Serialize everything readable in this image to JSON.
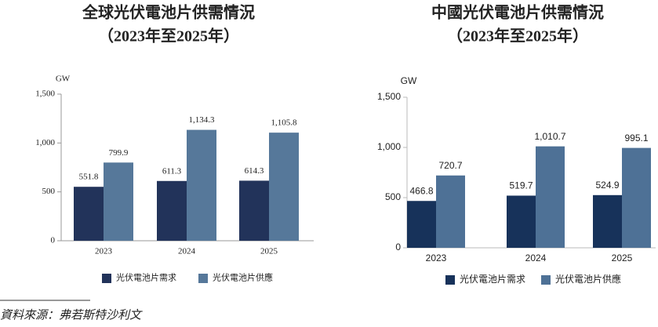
{
  "chart_data": [
    {
      "type": "bar",
      "title": "全球光伏電池片供需情況",
      "subtitle": "（2023年至2025年）",
      "y_label": "GW",
      "categories": [
        "2023",
        "2024",
        "2025"
      ],
      "series": [
        {
          "name": "光伏電池片需求",
          "color": "#22335a",
          "values": [
            551.8,
            611.3,
            614.3
          ],
          "value_labels": [
            "551.8",
            "611.3",
            "614.3"
          ]
        },
        {
          "name": "光伏電池片供應",
          "color": "#56789a",
          "values": [
            799.9,
            1134.3,
            1105.8
          ],
          "value_labels": [
            "799.9",
            "1,134.3",
            "1,105.8"
          ]
        }
      ],
      "ylim": [
        0,
        1500
      ],
      "yticks": [
        0,
        500,
        {
          "value": 1000,
          "label": "1,000"
        },
        {
          "value": 1500,
          "label": "1,500"
        }
      ],
      "grid": false,
      "legend": "bottom"
    },
    {
      "type": "bar",
      "title": "中國光伏電池片供需情況",
      "subtitle": "（2023年至2025年）",
      "y_label": "GW",
      "categories": [
        "2023",
        "2024",
        "2025"
      ],
      "series": [
        {
          "name": "光伏電池片需求",
          "color": "#17325a",
          "values": [
            466.8,
            519.7,
            524.9
          ],
          "value_labels": [
            "466.8",
            "519.7",
            "524.9"
          ]
        },
        {
          "name": "光伏電池片供應",
          "color": "#4e7196",
          "values": [
            720.7,
            1010.7,
            995.1
          ],
          "value_labels": [
            "720.7",
            "1,010.7",
            "995.1"
          ]
        }
      ],
      "ylim": [
        0,
        1500
      ],
      "yticks": [
        0,
        500,
        {
          "value": 1000,
          "label": "1,000"
        },
        {
          "value": 1500,
          "label": "1,500"
        }
      ],
      "grid": false,
      "legend": "bottom"
    }
  ],
  "source": "資料來源：弗若斯特沙利文"
}
